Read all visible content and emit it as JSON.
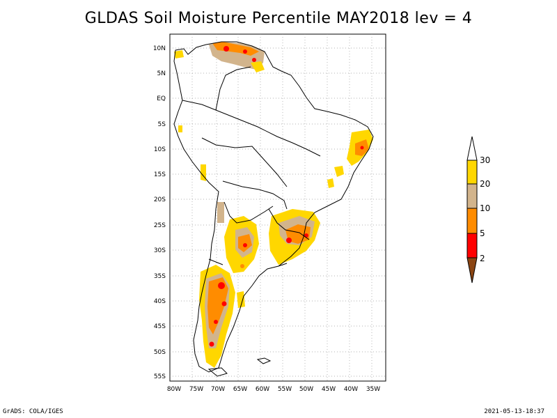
{
  "title": "GLDAS Soil Moisture Percentile MAY2018 lev = 4",
  "footer": {
    "left": "GrADS: COLA/IGES",
    "right": "2021-05-13-18:37"
  },
  "map": {
    "region": "South America",
    "lon_range": [
      -80,
      -30
    ],
    "lat_range": [
      -55,
      10
    ],
    "lon_ticks": [
      "80W",
      "75W",
      "70W",
      "65W",
      "60W",
      "55W",
      "50W",
      "45W",
      "40W",
      "35W"
    ],
    "lat_ticks": [
      "10N",
      "5N",
      "EQ",
      "5S",
      "10S",
      "15S",
      "20S",
      "25S",
      "30S",
      "35S",
      "40S",
      "45S",
      "50S",
      "55S"
    ],
    "grid": "dotted"
  },
  "legend": {
    "labels": [
      "30",
      "20",
      "10",
      "5",
      "2"
    ],
    "colors": {
      "above_30": "#ffffff",
      "20_30": "#ffd700",
      "10_20": "#d2b48c",
      "5_10": "#ff8c00",
      "2_5": "#ff0000",
      "below_2": "#8b4513"
    }
  }
}
